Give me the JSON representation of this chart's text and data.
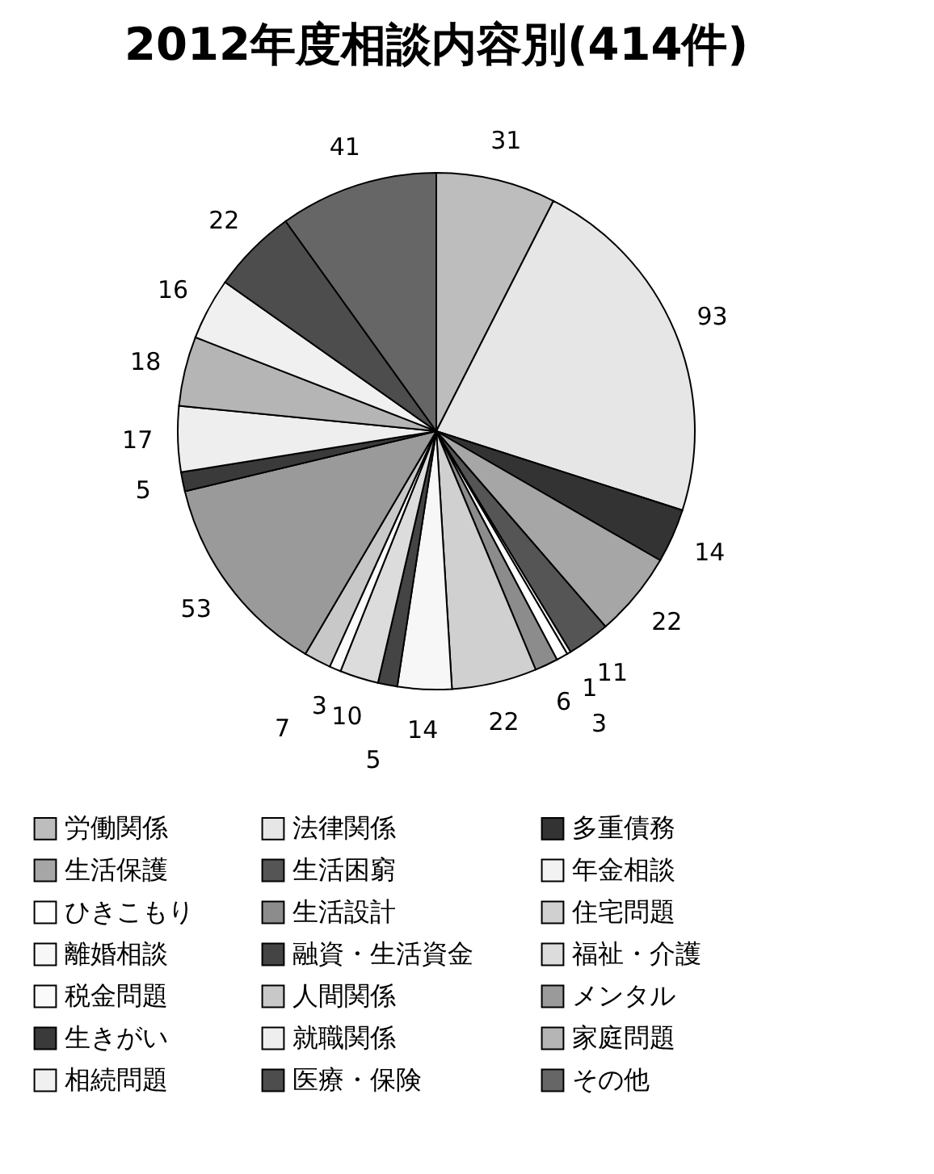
{
  "chart_data": {
    "type": "pie",
    "title": "2012年度相談内容別(414件)",
    "categories": [
      "労働関係",
      "法律関係",
      "多重債務",
      "生活保護",
      "生活困窮",
      "年金相談",
      "ひきこもり",
      "生活設計",
      "住宅問題",
      "離婚相談",
      "融資・生活資金",
      "福祉・介護",
      "税金問題",
      "人間関係",
      "メンタル",
      "生きがい",
      "就職関係",
      "家庭問題",
      "相続問題",
      "医療・保険",
      "その他"
    ],
    "values": [
      31,
      93,
      14,
      22,
      11,
      1,
      3,
      6,
      22,
      14,
      5,
      10,
      3,
      7,
      53,
      5,
      17,
      18,
      16,
      22,
      41
    ],
    "colors": [
      "#bdbdbd",
      "#e6e6e6",
      "#333333",
      "#a6a6a6",
      "#555555",
      "#f2f2f2",
      "#ffffff",
      "#8c8c8c",
      "#d0d0d0",
      "#f7f7f7",
      "#444444",
      "#dcdcdc",
      "#fafafa",
      "#c8c8c8",
      "#9a9a9a",
      "#3a3a3a",
      "#eeeeee",
      "#b5b5b5",
      "#f0f0f0",
      "#4d4d4d",
      "#666666"
    ],
    "data_labels": true,
    "legend": "bottom"
  }
}
